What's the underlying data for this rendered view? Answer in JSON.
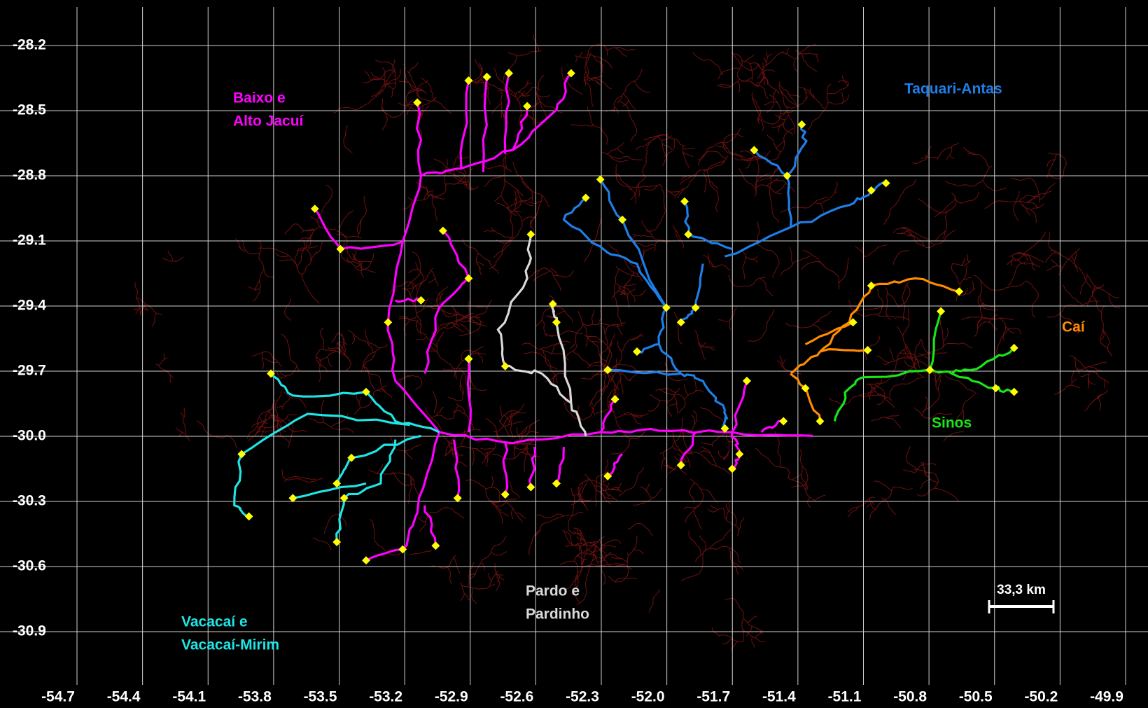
{
  "map": {
    "x_ticks": [
      -54.7,
      -54.4,
      -54.1,
      -53.8,
      -53.5,
      -53.2,
      -52.9,
      -52.6,
      -52.3,
      {
        "value": -52,
        "label": "-52.0"
      },
      -51.7,
      -51.4,
      -51.1,
      -50.8,
      -50.5,
      -50.2,
      -49.9
    ],
    "y_ticks": [
      -28.2,
      -28.5,
      -28.8,
      -29.1,
      -29.4,
      -29.7,
      {
        "value": -30,
        "label": "-30.0"
      },
      -30.3,
      -30.6,
      -30.9
    ],
    "regions": [
      {
        "lines": [
          "Baixo e",
          "Alto Jacuí"
        ],
        "color": "#ff00ff"
      },
      {
        "lines": [
          "Taquari-Antas"
        ],
        "color": "#1e7fe8"
      },
      {
        "lines": [
          "Caí"
        ],
        "color": "#ff8c00"
      },
      {
        "lines": [
          "Sinos"
        ],
        "color": "#19e619"
      },
      {
        "lines": [
          "Pardo e",
          "Pardinho"
        ],
        "color": "#d9d9d9"
      },
      {
        "lines": [
          "Vacacaí e",
          "Vacacaí-Mirim"
        ],
        "color": "#1ee6e6"
      }
    ],
    "scale_bar": "33,3 km"
  }
}
